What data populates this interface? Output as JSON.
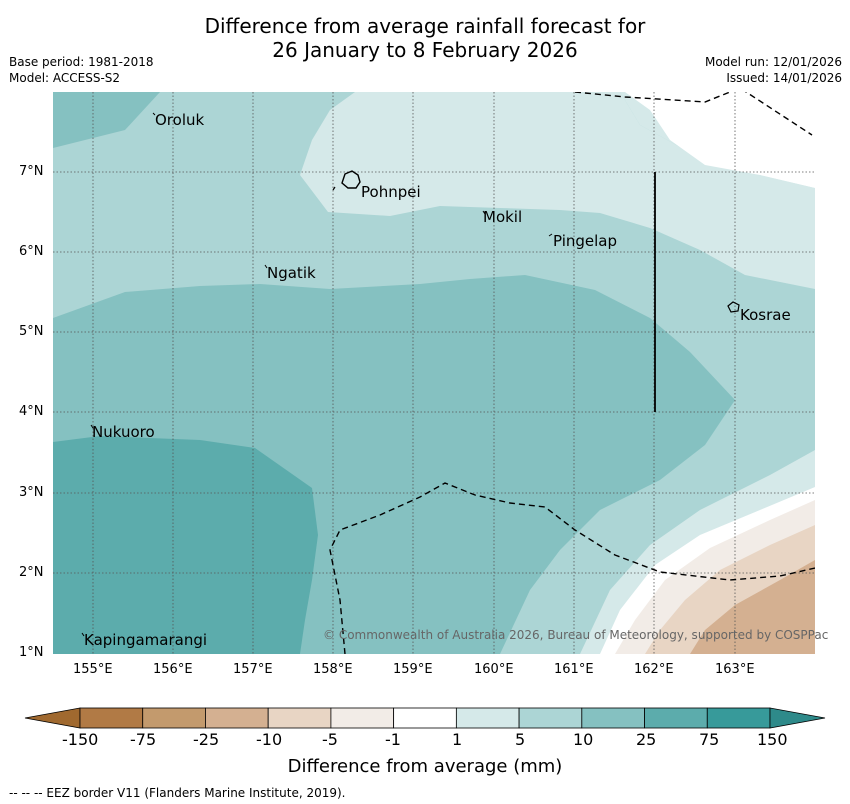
{
  "title": {
    "line1": "Difference from average rainfall forecast for",
    "line2": "26 January to 8 February 2026"
  },
  "meta": {
    "base_period": "Base period: 1981-2018",
    "model": "Model: ACCESS-S2",
    "model_run": "Model run: 12/01/2026",
    "issued": "Issued: 14/01/2026"
  },
  "map": {
    "latitude_labels": [
      "7°N",
      "6°N",
      "5°N",
      "4°N",
      "3°N",
      "2°N",
      "1°N"
    ],
    "longitude_labels": [
      "155°E",
      "156°E",
      "157°E",
      "158°E",
      "159°E",
      "160°E",
      "161°E",
      "162°E",
      "163°E"
    ],
    "places": [
      "Oroluk",
      "Pohnpei",
      "Mokil",
      "Pingelap",
      "Ngatik",
      "Kosrae",
      "Nukuoro",
      "Kapingamarangi"
    ],
    "copyright": "© Commonwealth of Australia 2026, Bureau of Meteorology, supported by COSPPac"
  },
  "colorbar": {
    "ticks": [
      "-150",
      "-75",
      "-25",
      "-10",
      "-5",
      "-1",
      "1",
      "5",
      "10",
      "25",
      "75",
      "150"
    ],
    "colors": [
      "#a0692f",
      "#b17a45",
      "#c39a6d",
      "#d4b091",
      "#e8d5c4",
      "#f2ece7",
      "#ffffff",
      "#d5e9e9",
      "#acd5d5",
      "#85c1c1",
      "#5cacac",
      "#379a9a",
      "#2e8a8a"
    ],
    "title": "Difference from average (mm)"
  },
  "footer": "--  --  -- EEZ border V11 (Flanders Marine Institute, 2019)."
}
